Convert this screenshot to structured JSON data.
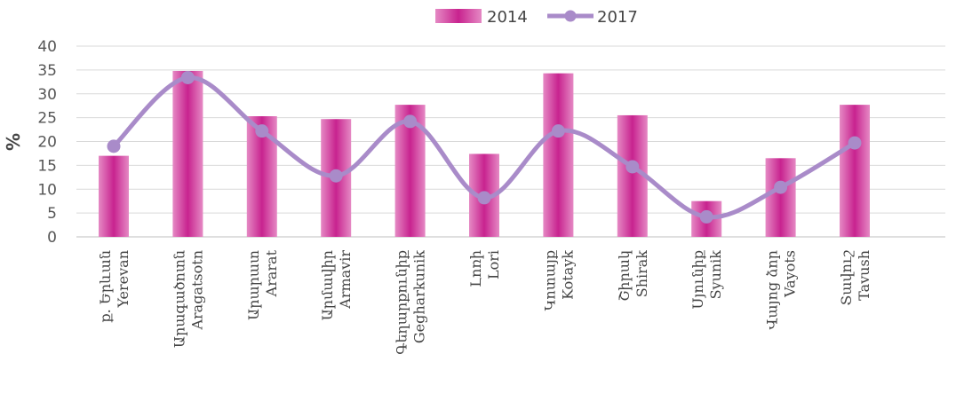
{
  "chart_data": {
    "type": "bar",
    "title": "",
    "ylabel": "%",
    "xlabel": "",
    "ylim": [
      0,
      40
    ],
    "yticks": [
      0,
      5,
      10,
      15,
      20,
      25,
      30,
      35,
      40
    ],
    "grid": true,
    "legend": "top-center",
    "categories": [
      {
        "am": "ք. Երևան",
        "en": "Yerevan"
      },
      {
        "am": "Արագածոտն",
        "en": "Aragatsotn"
      },
      {
        "am": "Արարատ",
        "en": "Ararat"
      },
      {
        "am": "Արմավիր",
        "en": "Armavir"
      },
      {
        "am": "Գեղարքունիք",
        "en": "Gegharkunik"
      },
      {
        "am": "Լոռի",
        "en": "Lori"
      },
      {
        "am": "Կոտայք",
        "en": "Kotayk"
      },
      {
        "am": "Շիրակ",
        "en": "Shirak"
      },
      {
        "am": "Սյունիք",
        "en": "Syunik"
      },
      {
        "am": "Վայոց ձոր",
        "en": "Vayots"
      },
      {
        "am": "Տավուշ",
        "en": "Tavush"
      }
    ],
    "series": [
      {
        "name": "2014",
        "kind": "bar",
        "color": "#c8238f",
        "values": [
          17.0,
          34.8,
          25.3,
          24.7,
          27.7,
          17.4,
          34.3,
          25.5,
          7.5,
          16.5,
          27.7
        ]
      },
      {
        "name": "2017",
        "kind": "line",
        "color": "#a98bc9",
        "values": [
          19.0,
          33.4,
          22.2,
          12.8,
          24.2,
          8.2,
          22.2,
          14.7,
          4.2,
          10.4,
          19.7
        ]
      }
    ]
  }
}
